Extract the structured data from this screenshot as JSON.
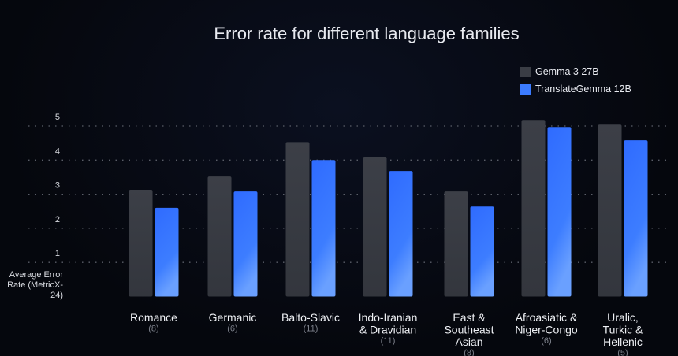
{
  "chart_data": {
    "type": "bar",
    "title": "Error rate for different language families",
    "ylabel": "Average Error Rate (MetricX-24)",
    "xlabel": "",
    "ylim": [
      0,
      5.3
    ],
    "yticks": [
      1,
      2,
      3,
      4,
      5
    ],
    "grid": true,
    "legend_position": "top-right",
    "categories": [
      {
        "lines": [
          "Romance"
        ],
        "count": "(8)"
      },
      {
        "lines": [
          "Germanic"
        ],
        "count": "(6)"
      },
      {
        "lines": [
          "Balto-Slavic"
        ],
        "count": "(11)"
      },
      {
        "lines": [
          "Indo-Iranian",
          "& Dravidian"
        ],
        "count": "(11)"
      },
      {
        "lines": [
          "East &",
          "Southeast",
          "Asian"
        ],
        "count": "(8)"
      },
      {
        "lines": [
          "Afroasiatic &",
          "Niger-Congo"
        ],
        "count": "(6)"
      },
      {
        "lines": [
          "Uralic,",
          "Turkic &",
          "Hellenic"
        ],
        "count": "(5)"
      }
    ],
    "series": [
      {
        "name": "Gemma 3 27B",
        "color": "#3a3d45",
        "values": [
          3.13,
          3.52,
          4.53,
          4.1,
          3.08,
          5.18,
          5.04
        ]
      },
      {
        "name": "TranslateGemma 12B",
        "color": "#3b7bff",
        "values": [
          2.6,
          3.08,
          4.0,
          3.68,
          2.64,
          4.97,
          4.58
        ]
      }
    ]
  }
}
